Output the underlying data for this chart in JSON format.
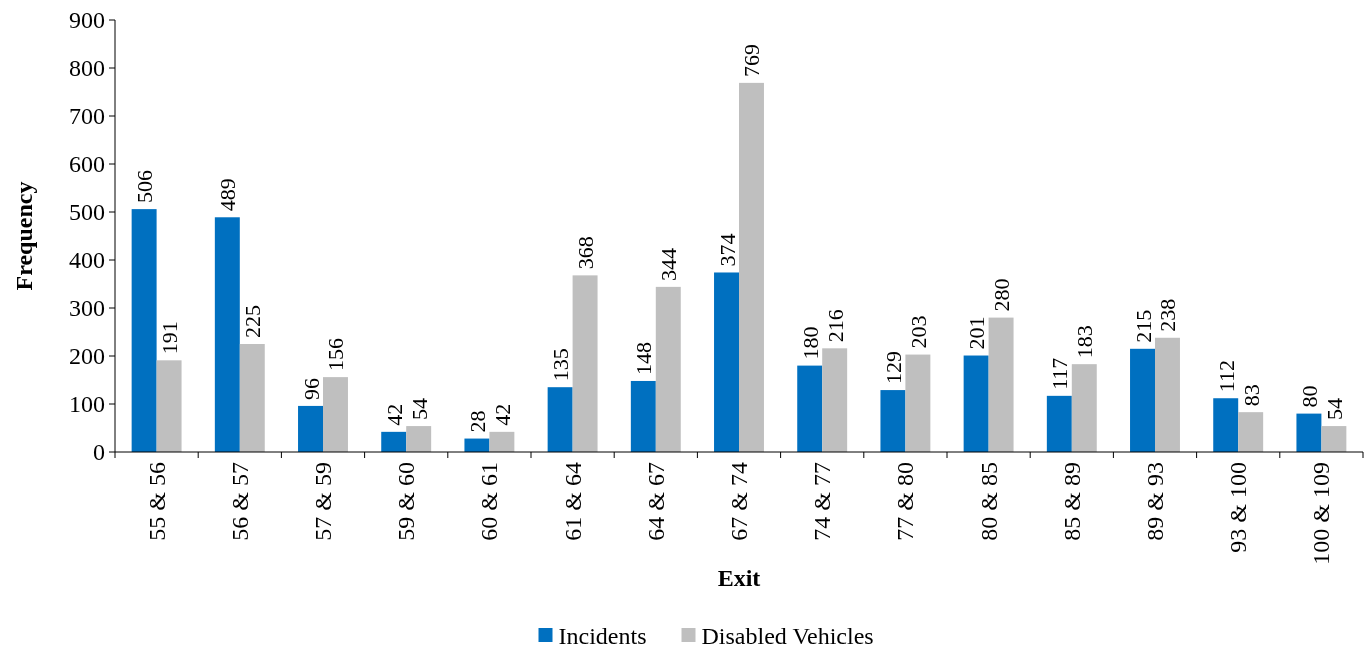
{
  "chart_data": {
    "type": "bar",
    "xlabel": "Exit",
    "ylabel": "Frequency",
    "categories": [
      "55 & 56",
      "56 & 57",
      "57 & 59",
      "59 & 60",
      "60 & 61",
      "61 & 64",
      "64 & 67",
      "67 & 74",
      "74 & 77",
      "77 & 80",
      "80 & 85",
      "85 & 89",
      "89 & 93",
      "93 & 100",
      "100 & 109"
    ],
    "series": [
      {
        "name": "Incidents",
        "color": "#0070c0",
        "values": [
          506,
          489,
          96,
          42,
          28,
          135,
          148,
          374,
          180,
          129,
          201,
          117,
          215,
          112,
          80
        ]
      },
      {
        "name": "Disabled Vehicles",
        "color": "#bfbfbf",
        "values": [
          191,
          225,
          156,
          54,
          42,
          368,
          344,
          769,
          216,
          203,
          280,
          183,
          238,
          83,
          54
        ]
      }
    ],
    "ylim": [
      0,
      900
    ],
    "yticks": [
      0,
      100,
      200,
      300,
      400,
      500,
      600,
      700,
      800,
      900
    ],
    "data_labels": true,
    "grid": false,
    "legend": "bottom"
  }
}
